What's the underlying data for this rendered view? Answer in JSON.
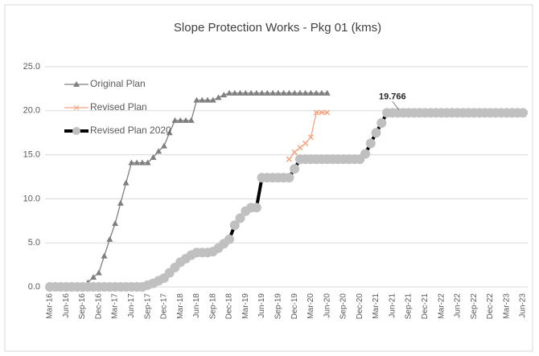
{
  "chart_data": {
    "type": "line",
    "title": "Slope Protection Works - Pkg 01 (kms)",
    "categories": [
      "Mar-16",
      null,
      null,
      "Jun-16",
      null,
      null,
      "Sep-16",
      null,
      null,
      "Dec-16",
      null,
      null,
      "Mar-17",
      null,
      null,
      "Jun-17",
      null,
      null,
      "Sep-17",
      null,
      null,
      "Dec-17",
      null,
      null,
      "Mar-18",
      null,
      null,
      "Jun-18",
      null,
      null,
      "Sep-18",
      null,
      null,
      "Dec-18",
      null,
      null,
      "Mar-19",
      null,
      null,
      "Jun-19",
      null,
      null,
      "Sep-19",
      null,
      null,
      "Dec-19",
      null,
      null,
      "Mar-20",
      null,
      null,
      "Jun-20",
      null,
      null,
      "Sep-20",
      null,
      null,
      "Dec-20",
      null,
      null,
      "Mar-21",
      null,
      null,
      "Jun-21",
      null,
      null,
      "Sep-21",
      null,
      null,
      "Dec-21",
      null,
      null,
      "Mar-22",
      null,
      null,
      "Jun-22",
      null,
      null,
      "Sep-22",
      null,
      null,
      "Dec-22",
      null,
      null,
      "Mar-23",
      null,
      null,
      "Jun-23"
    ],
    "series": [
      {
        "name": "Original Plan",
        "color": "#7f7f7f",
        "marker": "triangle",
        "values": [
          0,
          0,
          0,
          0,
          0,
          0,
          0,
          0.5,
          1.1,
          1.6,
          3.5,
          5.4,
          7.2,
          9.5,
          11.8,
          14.1,
          14.1,
          14.1,
          14.1,
          14.7,
          15.4,
          16.0,
          17.5,
          18.9,
          18.9,
          18.9,
          18.9,
          21.2,
          21.2,
          21.2,
          21.2,
          21.5,
          21.8,
          22,
          22,
          22,
          22,
          22,
          22,
          22,
          22,
          22,
          22,
          22,
          22,
          22,
          22,
          22,
          22,
          22,
          22,
          22,
          null,
          null,
          null,
          null,
          null,
          null,
          null,
          null,
          null,
          null,
          null,
          null,
          null,
          null,
          null,
          null,
          null,
          null,
          null,
          null,
          null,
          null,
          null,
          null,
          null,
          null,
          null,
          null,
          null,
          null,
          null,
          null,
          null,
          null,
          null,
          null
        ]
      },
      {
        "name": "Revised Plan",
        "color": "#f4a582",
        "marker": "x",
        "values": [
          null,
          null,
          null,
          null,
          null,
          null,
          null,
          null,
          null,
          null,
          null,
          null,
          null,
          null,
          null,
          null,
          null,
          null,
          null,
          null,
          null,
          null,
          null,
          null,
          null,
          null,
          null,
          null,
          null,
          null,
          null,
          null,
          null,
          null,
          null,
          null,
          null,
          null,
          null,
          null,
          null,
          null,
          null,
          null,
          14.5,
          15.3,
          15.8,
          16.3,
          17.0,
          19.8,
          19.8,
          19.8,
          null,
          null,
          null,
          null,
          null,
          null,
          null,
          null,
          null,
          null,
          null,
          null,
          null,
          null,
          null,
          null,
          null,
          null,
          null,
          null,
          null,
          null,
          null,
          null,
          null,
          null,
          null,
          null,
          null,
          null,
          null,
          null,
          null,
          null,
          null,
          null
        ]
      },
      {
        "name": "Revised Plan 2020",
        "color": "#000000",
        "marker": "circle",
        "marker_color": "#c0c0c0",
        "values": [
          0,
          0,
          0,
          0,
          0,
          0,
          0,
          0,
          0,
          0,
          0,
          0,
          0,
          0,
          0,
          0,
          0,
          0,
          0.2,
          0.4,
          0.7,
          1.0,
          1.6,
          2.2,
          2.8,
          3.2,
          3.6,
          3.9,
          3.9,
          3.9,
          4.0,
          4.4,
          4.9,
          5.4,
          7.0,
          7.8,
          8.6,
          9.0,
          9.0,
          12.4,
          12.4,
          12.4,
          12.4,
          12.4,
          12.4,
          13.4,
          14.5,
          14.5,
          14.5,
          14.5,
          14.5,
          14.5,
          14.5,
          14.5,
          14.5,
          14.5,
          14.5,
          14.5,
          15.1,
          16.3,
          17.5,
          18.6,
          19.766,
          19.766,
          19.766,
          19.766,
          19.766,
          19.766,
          19.766,
          19.766,
          19.766,
          19.766,
          19.766,
          19.766,
          19.766,
          19.766,
          19.766,
          19.766,
          19.766,
          19.766,
          19.766,
          19.766,
          19.766,
          19.766,
          19.766,
          19.766,
          19.766,
          19.766
        ],
        "value_labels": [
          null,
          null,
          null,
          null,
          null,
          null,
          null,
          null,
          null,
          null,
          null,
          null,
          null,
          null,
          null,
          null,
          null,
          null,
          null,
          null,
          null,
          null,
          null,
          null,
          null,
          null,
          null,
          null,
          null,
          null,
          null,
          null,
          null,
          null,
          null,
          null,
          null,
          null,
          null,
          null,
          null,
          null,
          null,
          null,
          null,
          null,
          null,
          null,
          null,
          null,
          null,
          null,
          null,
          null,
          null,
          null,
          null,
          null,
          null,
          null,
          null,
          null,
          null,
          "19.766",
          null,
          null,
          null,
          null,
          null,
          null,
          null,
          null,
          null,
          null,
          null,
          null,
          null,
          null,
          null,
          null,
          null,
          null,
          null,
          null,
          null,
          null,
          null,
          null
        ]
      }
    ],
    "ylim": [
      0,
      25
    ],
    "yticks": [
      {
        "value": 0,
        "label": "0.0"
      },
      {
        "value": 5,
        "label": "5.0"
      },
      {
        "value": 10,
        "label": "10.0"
      },
      {
        "value": 15,
        "label": "15.0"
      },
      {
        "value": 20,
        "label": "20.0"
      },
      {
        "value": 25,
        "label": "25.0"
      }
    ],
    "grid": true,
    "legend": "upper left"
  }
}
